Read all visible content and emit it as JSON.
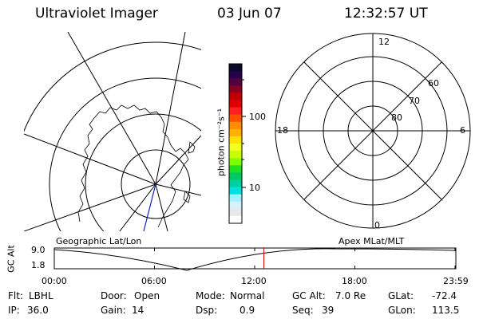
{
  "header": {
    "instrument": "Ultraviolet Imager",
    "date": "03 Jun 07",
    "time": "12:32:57 UT"
  },
  "geo_panel": {
    "label": "Geographic Lat/Lon"
  },
  "apex_panel": {
    "label": "Apex MLat/MLT",
    "mlt_labels": {
      "top": "12",
      "left": "18",
      "right": "6",
      "bottom": "0"
    },
    "lat_labels": [
      "60",
      "70",
      "80"
    ]
  },
  "colorbar": {
    "unit_label": "photon cm⁻²s⁻¹",
    "tick_labels": [
      "100",
      "10"
    ],
    "colors": [
      "#0a0a28",
      "#26004a",
      "#540040",
      "#8a0020",
      "#c00000",
      "#e00000",
      "#ff2020",
      "#ff5000",
      "#ff8c00",
      "#ffb000",
      "#ffe000",
      "#f0ff20",
      "#c8ff00",
      "#80ff00",
      "#20e020",
      "#00c860",
      "#00d0a0",
      "#00e0e0",
      "#a0f0ff",
      "#d8f0f8",
      "#e8e8e8",
      "#ffffff"
    ]
  },
  "altitude_plot": {
    "ylabel": "GC Alt",
    "y_ticks": [
      "9.0",
      "1.8"
    ],
    "x_ticks": [
      "00:00",
      "06:00",
      "12:00",
      "18:00",
      "23:59"
    ],
    "current_time_hours": 12.55
  },
  "info": {
    "filter_label": "Flt:",
    "filter_value": "LBHL",
    "ip_label": "IP:",
    "ip_value": "36.0",
    "door_label": "Door:",
    "door_value": "Open",
    "gain_label": "Gain:",
    "gain_value": "14",
    "mode_label": "Mode:",
    "mode_value": "Normal",
    "dsp_label": "Dsp:",
    "dsp_value": "0.9",
    "gcalt_label": "GC Alt:",
    "gcalt_value": "7.0 Re",
    "seq_label": "Seq:",
    "seq_value": "39",
    "glat_label": "GLat:",
    "glat_value": "-72.4",
    "glon_label": "GLon:",
    "glon_value": "113.5"
  }
}
